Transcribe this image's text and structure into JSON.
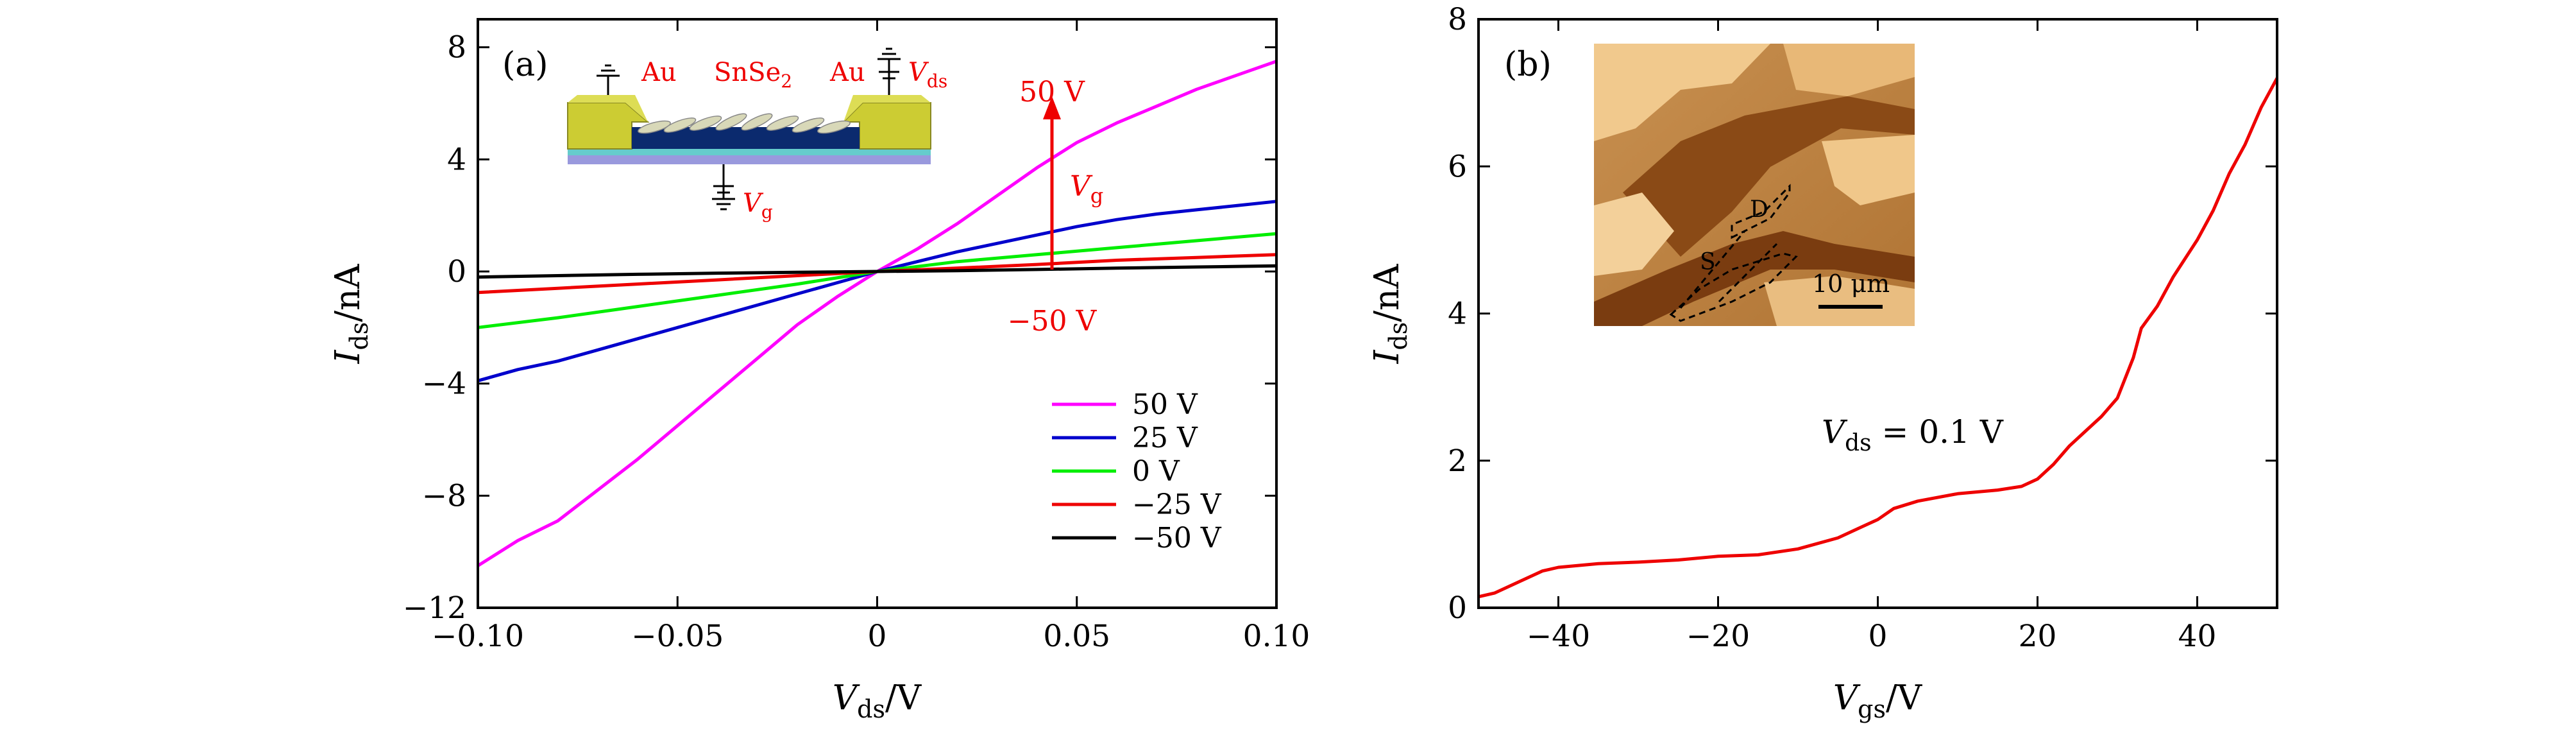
{
  "colors": {
    "magenta": "#ff00ff",
    "blue": "#0000cc",
    "green": "#00ee00",
    "red": "#ee0000",
    "black": "#000000",
    "au_gold": "#cccc33",
    "substrate_cyan": "#66cccc",
    "substrate_purple": "#9999dd",
    "channel_blue": "#0b2a6e",
    "afm_light": "#f1c98d",
    "afm_dark": "#8a4a16"
  },
  "chart_data": [
    {
      "type": "line",
      "panel_label": "(a)",
      "xlabel": {
        "main": "V",
        "sub": "ds",
        "unit": "/V"
      },
      "ylabel": {
        "main": "I",
        "sub": "ds",
        "unit": "/nA"
      },
      "xlim": [
        -0.1,
        0.1
      ],
      "ylim": [
        -12,
        9
      ],
      "x_ticks": [
        -0.1,
        -0.05,
        0,
        0.05,
        0.1
      ],
      "x_tick_labels": [
        "−0.10",
        "−0.05",
        "0",
        "0.05",
        "0.10"
      ],
      "y_ticks": [
        -12,
        -8,
        -4,
        0,
        4,
        8
      ],
      "y_tick_labels": [
        "−12",
        "−8",
        "−4",
        "0",
        "4",
        "8"
      ],
      "grid": false,
      "legend_position": "bottom-right",
      "series": [
        {
          "name": "50 V",
          "color": "#ff00ff",
          "x": [
            -0.1,
            -0.09,
            -0.08,
            -0.07,
            -0.06,
            -0.05,
            -0.04,
            -0.03,
            -0.02,
            -0.01,
            0,
            0.01,
            0.02,
            0.03,
            0.04,
            0.05,
            0.06,
            0.07,
            0.08,
            0.09,
            0.1
          ],
          "y": [
            -10.5,
            -9.6,
            -8.9,
            -7.8,
            -6.7,
            -5.5,
            -4.3,
            -3.1,
            -1.9,
            -0.9,
            0,
            0.8,
            1.7,
            2.7,
            3.7,
            4.6,
            5.3,
            5.9,
            6.5,
            7.0,
            7.5
          ]
        },
        {
          "name": "25 V",
          "color": "#0000cc",
          "x": [
            -0.1,
            -0.09,
            -0.08,
            -0.07,
            -0.06,
            -0.05,
            -0.04,
            -0.03,
            -0.02,
            -0.01,
            0,
            0.01,
            0.02,
            0.03,
            0.04,
            0.05,
            0.06,
            0.07,
            0.08,
            0.09,
            0.1
          ],
          "y": [
            -3.9,
            -3.5,
            -3.2,
            -2.8,
            -2.4,
            -2.0,
            -1.6,
            -1.2,
            -0.8,
            -0.4,
            0,
            0.35,
            0.7,
            1.0,
            1.3,
            1.6,
            1.85,
            2.05,
            2.2,
            2.35,
            2.5
          ]
        },
        {
          "name": "0 V",
          "color": "#00ee00",
          "x": [
            -0.1,
            -0.08,
            -0.06,
            -0.04,
            -0.02,
            0,
            0.02,
            0.04,
            0.06,
            0.08,
            0.1
          ],
          "y": [
            -2.0,
            -1.65,
            -1.25,
            -0.85,
            -0.45,
            0,
            0.35,
            0.6,
            0.85,
            1.1,
            1.35
          ]
        },
        {
          "name": "−25 V",
          "color": "#ee0000",
          "x": [
            -0.1,
            -0.08,
            -0.06,
            -0.04,
            -0.02,
            0,
            0.02,
            0.04,
            0.06,
            0.08,
            0.1
          ],
          "y": [
            -0.75,
            -0.6,
            -0.45,
            -0.3,
            -0.15,
            0,
            0.12,
            0.25,
            0.4,
            0.5,
            0.6
          ]
        },
        {
          "name": "−50 V",
          "color": "#000000",
          "x": [
            -0.1,
            -0.08,
            -0.06,
            -0.04,
            -0.02,
            0,
            0.02,
            0.04,
            0.06,
            0.08,
            0.1
          ],
          "y": [
            -0.2,
            -0.15,
            -0.1,
            -0.06,
            -0.03,
            0,
            0.03,
            0.07,
            0.12,
            0.16,
            0.2
          ]
        }
      ],
      "annotations": {
        "arrow_top": "50 V",
        "arrow_bottom": "−50 V",
        "arrow_label_main": "V",
        "arrow_label_sub": "g",
        "inset": {
          "au_left": "Au",
          "au_right": "Au",
          "material_main": "SnSe",
          "material_sub": "2",
          "vds_main": "V",
          "vds_sub": "ds",
          "vg_main": "V",
          "vg_sub": "g"
        }
      }
    },
    {
      "type": "line",
      "panel_label": "(b)",
      "xlabel": {
        "main": "V",
        "sub": "gs",
        "unit": "/V"
      },
      "ylabel": {
        "main": "I",
        "sub": "ds",
        "unit": "/nA"
      },
      "xlim": [
        -50,
        50
      ],
      "ylim": [
        0,
        8
      ],
      "x_ticks": [
        -40,
        -20,
        0,
        20,
        40
      ],
      "x_tick_labels": [
        "−40",
        "−20",
        "0",
        "20",
        "40"
      ],
      "y_ticks": [
        0,
        2,
        4,
        6,
        8
      ],
      "y_tick_labels": [
        "0",
        "2",
        "4",
        "6",
        "8"
      ],
      "grid": false,
      "series": [
        {
          "color": "#ee0000",
          "x": [
            -50,
            -48,
            -45,
            -42,
            -40,
            -35,
            -30,
            -25,
            -20,
            -15,
            -10,
            -5,
            -2,
            0,
            2,
            5,
            10,
            15,
            18,
            20,
            22,
            24,
            26,
            28,
            30,
            32,
            33,
            35,
            37,
            40,
            42,
            44,
            46,
            48,
            50
          ],
          "y": [
            0.15,
            0.2,
            0.35,
            0.5,
            0.55,
            0.6,
            0.62,
            0.65,
            0.7,
            0.72,
            0.8,
            0.95,
            1.1,
            1.2,
            1.35,
            1.45,
            1.55,
            1.6,
            1.65,
            1.75,
            1.95,
            2.2,
            2.4,
            2.6,
            2.85,
            3.4,
            3.8,
            4.1,
            4.5,
            5.0,
            5.4,
            5.9,
            6.3,
            6.8,
            7.2
          ]
        }
      ],
      "annotations": {
        "condition_main": "V",
        "condition_sub": "ds",
        "condition_value": " = 0.1 V",
        "inset": {
          "drain_label": "D",
          "source_label": "S",
          "scale_bar": "10 μm"
        }
      }
    }
  ]
}
